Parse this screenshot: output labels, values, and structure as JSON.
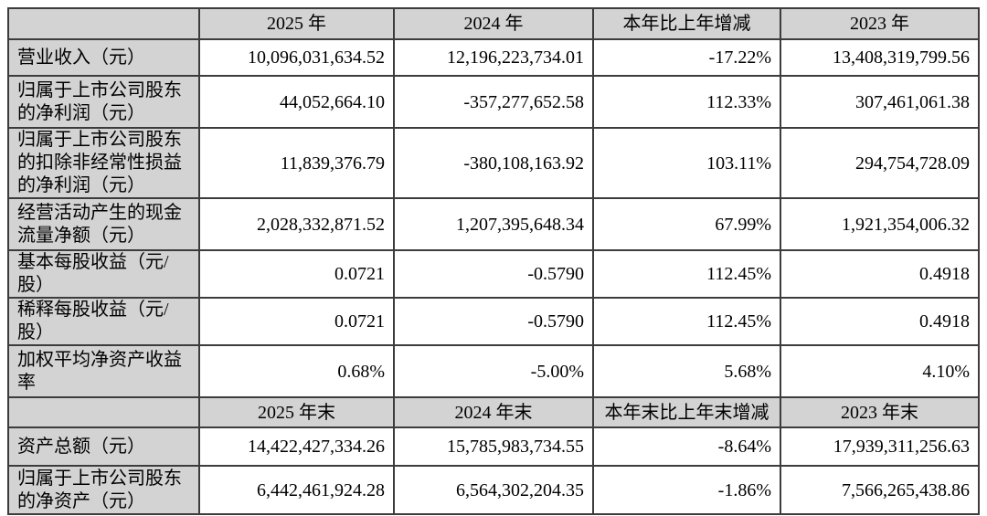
{
  "colors": {
    "header_bg": "#d3d3d3",
    "label_bg": "#d3d3d3",
    "cell_bg": "#ffffff",
    "border": "#3c3c3c",
    "text": "#000000"
  },
  "table": {
    "sections": [
      {
        "columns": [
          "",
          "2025 年",
          "2024 年",
          "本年比上年增减",
          "2023 年"
        ],
        "rows": [
          {
            "label": "营业收入（元）",
            "values": [
              "10,096,031,634.52",
              "12,196,223,734.01",
              "-17.22%",
              "13,408,319,799.56"
            ]
          },
          {
            "label": "归属于上市公司股东的净利润（元）",
            "values": [
              "44,052,664.10",
              "-357,277,652.58",
              "112.33%",
              "307,461,061.38"
            ]
          },
          {
            "label": "归属于上市公司股东的扣除非经常性损益的净利润（元）",
            "values": [
              "11,839,376.79",
              "-380,108,163.92",
              "103.11%",
              "294,754,728.09"
            ]
          },
          {
            "label": "经营活动产生的现金流量净额（元）",
            "values": [
              "2,028,332,871.52",
              "1,207,395,648.34",
              "67.99%",
              "1,921,354,006.32"
            ]
          },
          {
            "label": "基本每股收益（元/股）",
            "values": [
              "0.0721",
              "-0.5790",
              "112.45%",
              "0.4918"
            ]
          },
          {
            "label": "稀释每股收益（元/股）",
            "values": [
              "0.0721",
              "-0.5790",
              "112.45%",
              "0.4918"
            ]
          },
          {
            "label": "加权平均净资产收益率",
            "values": [
              "0.68%",
              "-5.00%",
              "5.68%",
              "4.10%"
            ]
          }
        ]
      },
      {
        "columns": [
          "",
          "2025 年末",
          "2024 年末",
          "本年末比上年末增减",
          "2023 年末"
        ],
        "rows": [
          {
            "label": "资产总额（元）",
            "values": [
              "14,422,427,334.26",
              "15,785,983,734.55",
              "-8.64%",
              "17,939,311,256.63"
            ]
          },
          {
            "label": "归属于上市公司股东的净资产（元）",
            "values": [
              "6,442,461,924.28",
              "6,564,302,204.35",
              "-1.86%",
              "7,566,265,438.86"
            ]
          }
        ]
      }
    ]
  }
}
